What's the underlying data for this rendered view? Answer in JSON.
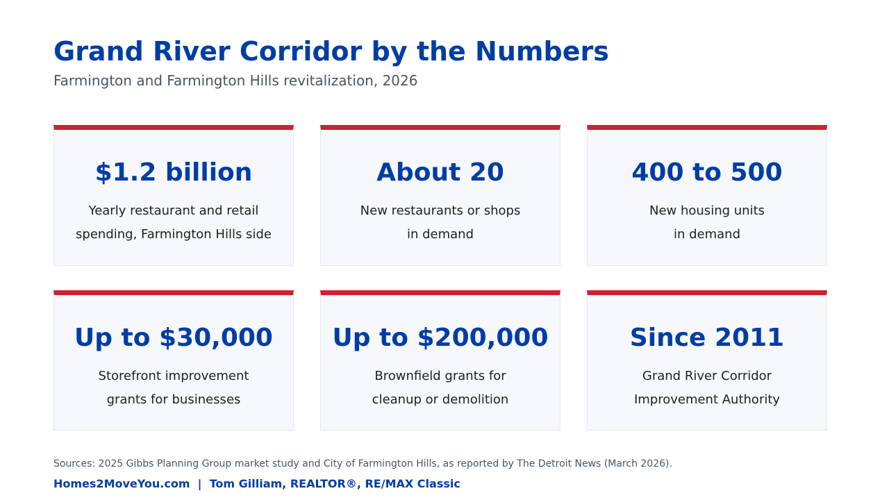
{
  "header": {
    "title": "Grand River Corridor by the Numbers",
    "subtitle": "Farmington and Farmington Hills revitalization, 2026"
  },
  "cards": [
    {
      "value": "$1.2 billion",
      "label_lines": [
        "Yearly restaurant and retail",
        "spending, Farmington Hills side"
      ]
    },
    {
      "value": "About 20",
      "label_lines": [
        "New restaurants or shops",
        "in demand"
      ]
    },
    {
      "value": "400 to 500",
      "label_lines": [
        "New housing units",
        "in demand"
      ]
    },
    {
      "value": "Up to $30,000",
      "label_lines": [
        "Storefront improvement",
        "grants for businesses"
      ]
    },
    {
      "value": "Up to $200,000",
      "label_lines": [
        "Brownfield grants for",
        "cleanup or demolition"
      ]
    },
    {
      "value": "Since 2011",
      "label_lines": [
        "Grand River Corridor",
        "Improvement Authority"
      ]
    }
  ],
  "footer": {
    "sources": "Sources: 2025 Gibbs Planning Group market study and City of Farmington Hills, as reported by The Detroit News (March 2026).",
    "credit": "Homes2MoveYou.com  |  Tom Gilliam, REALTOR®, RE/MAX Classic"
  },
  "colors": {
    "title_blue": "#003da5",
    "accent_red": "#cf2030",
    "card_bg": "#f6f8fb",
    "text_gray": "#4a5560"
  }
}
